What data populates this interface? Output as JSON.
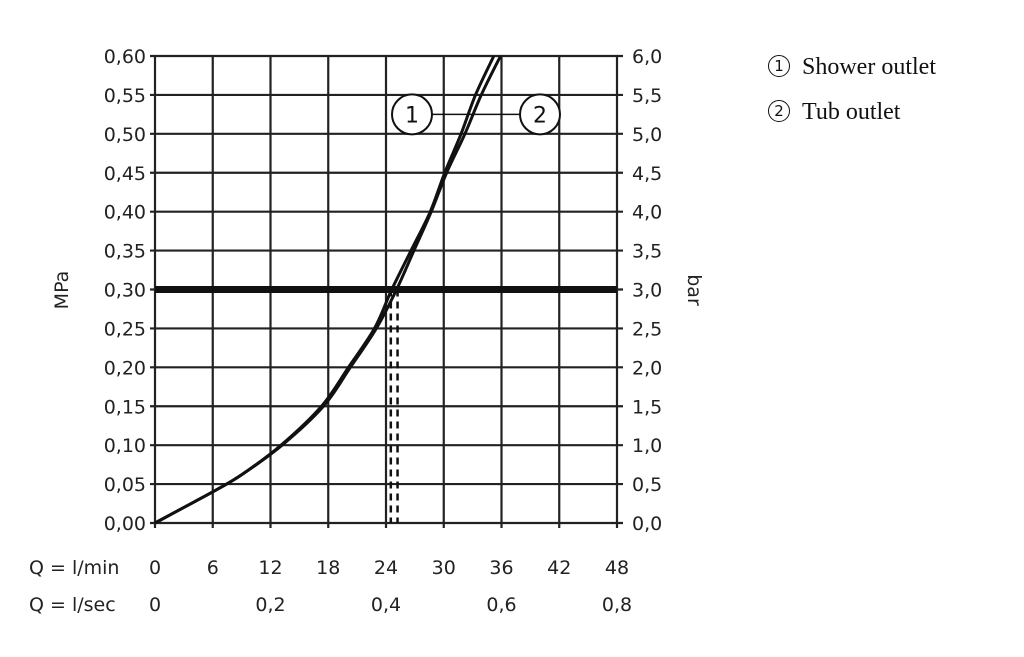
{
  "chart_data": {
    "type": "line",
    "xlabel": "Q = l/min",
    "xlabel_secondary": "Q = l/sec",
    "ylabel": "MPa",
    "ylabel_right": "bar",
    "xlim": [
      0,
      48
    ],
    "ylim": [
      0,
      0.6
    ],
    "grid": true,
    "x_ticks": [
      "0",
      "6",
      "12",
      "18",
      "24",
      "30",
      "36",
      "42",
      "48"
    ],
    "x_ticks_secondary": [
      "0",
      "0,2",
      "0,4",
      "0,6",
      "0,8"
    ],
    "y_ticks": [
      "0,00",
      "0,05",
      "0,10",
      "0,15",
      "0,20",
      "0,25",
      "0,30",
      "0,35",
      "0,40",
      "0,45",
      "0,50",
      "0,55",
      "0,60"
    ],
    "y_ticks_right": [
      "0,0",
      "0,5",
      "1,0",
      "1,5",
      "2,0",
      "2,5",
      "3,0",
      "3,5",
      "4,0",
      "4,5",
      "5,0",
      "5,5",
      "6,0"
    ],
    "reference_line": {
      "y": 0.3
    },
    "series": [
      {
        "name": "1",
        "x": [
          0,
          3,
          6,
          9,
          13.1,
          17.3,
          20.1,
          22.8,
          24.6,
          26.6,
          28.6,
          30.1,
          31.8,
          33.3,
          35.2
        ],
        "y": [
          0,
          0.02,
          0.04,
          0.062,
          0.1,
          0.15,
          0.2,
          0.25,
          0.3,
          0.35,
          0.4,
          0.45,
          0.5,
          0.55,
          0.6
        ]
      },
      {
        "name": "2",
        "x": [
          0,
          3,
          6,
          9,
          13.2,
          17.5,
          20.3,
          23.0,
          25.1,
          26.9,
          28.7,
          30.3,
          32.2,
          33.9,
          35.9
        ],
        "y": [
          0,
          0.02,
          0.04,
          0.062,
          0.1,
          0.15,
          0.2,
          0.25,
          0.3,
          0.35,
          0.4,
          0.45,
          0.5,
          0.55,
          0.6
        ]
      }
    ],
    "dashed_markers_x": [
      24.5,
      25.2
    ],
    "callouts": [
      "1",
      "2"
    ],
    "legend": [
      {
        "num": "1",
        "label": "Shower outlet"
      },
      {
        "num": "2",
        "label": "Tub outlet"
      }
    ],
    "legend_position": "top-right"
  }
}
